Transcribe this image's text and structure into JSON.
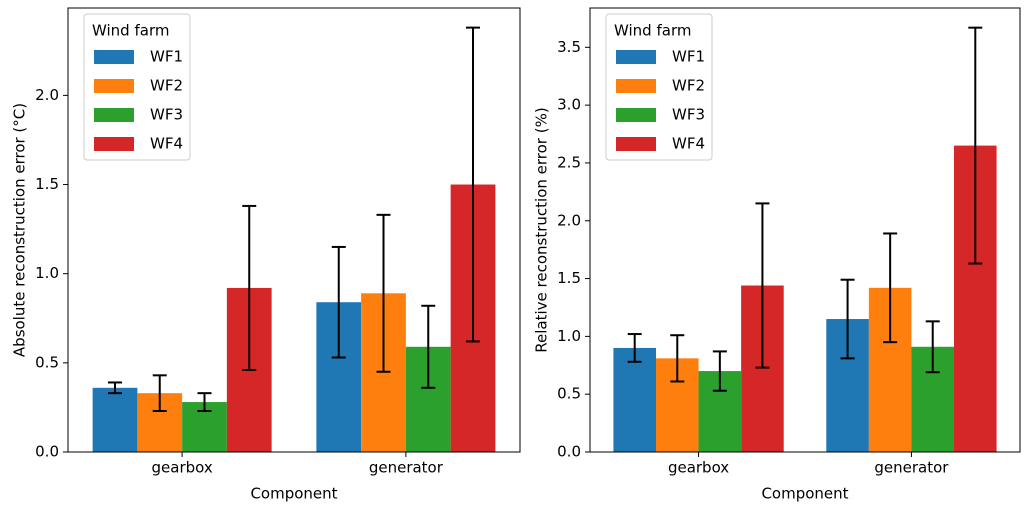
{
  "chart_data": [
    {
      "type": "bar",
      "ylabel": "Absolute reconstruction error (°C)",
      "xlabel": "Component",
      "categories": [
        "gearbox",
        "generator"
      ],
      "ylim": [
        0,
        2.49
      ],
      "yticks": [
        {
          "value": 0,
          "label": "0.0"
        },
        0.5,
        {
          "value": 1,
          "label": "1.0"
        },
        1.5,
        {
          "value": 2,
          "label": "2.0"
        }
      ],
      "legend_title": "Wind farm",
      "legend": "upper left",
      "series": [
        {
          "name": "WF1",
          "color": "#1f77b4",
          "values": [
            0.36,
            0.84
          ],
          "errors": [
            0.03,
            0.31
          ]
        },
        {
          "name": "WF2",
          "color": "#ff7f0e",
          "values": [
            0.33,
            0.89
          ],
          "errors": [
            0.1,
            0.44
          ]
        },
        {
          "name": "WF3",
          "color": "#2ca02c",
          "values": [
            0.28,
            0.59
          ],
          "errors": [
            0.05,
            0.23
          ]
        },
        {
          "name": "WF4",
          "color": "#d62728",
          "values": [
            0.92,
            1.5
          ],
          "errors": [
            0.46,
            0.88
          ]
        }
      ]
    },
    {
      "type": "bar",
      "ylabel": "Relative reconstruction error (%)",
      "xlabel": "Component",
      "categories": [
        "gearbox",
        "generator"
      ],
      "ylim": [
        0,
        3.84
      ],
      "yticks": [
        {
          "value": 0,
          "label": "0.0"
        },
        0.5,
        {
          "value": 1,
          "label": "1.0"
        },
        1.5,
        {
          "value": 2,
          "label": "2.0"
        },
        2.5,
        {
          "value": 3,
          "label": "3.0"
        },
        3.5
      ],
      "legend_title": "Wind farm",
      "legend": "upper left",
      "series": [
        {
          "name": "WF1",
          "color": "#1f77b4",
          "values": [
            0.9,
            1.15
          ],
          "errors": [
            0.12,
            0.34
          ]
        },
        {
          "name": "WF2",
          "color": "#ff7f0e",
          "values": [
            0.81,
            1.42
          ],
          "errors": [
            0.2,
            0.47
          ]
        },
        {
          "name": "WF3",
          "color": "#2ca02c",
          "values": [
            0.7,
            0.91
          ],
          "errors": [
            0.17,
            0.22
          ]
        },
        {
          "name": "WF4",
          "color": "#d62728",
          "values": [
            1.44,
            2.65
          ],
          "errors": [
            0.71,
            1.02
          ]
        }
      ]
    }
  ]
}
